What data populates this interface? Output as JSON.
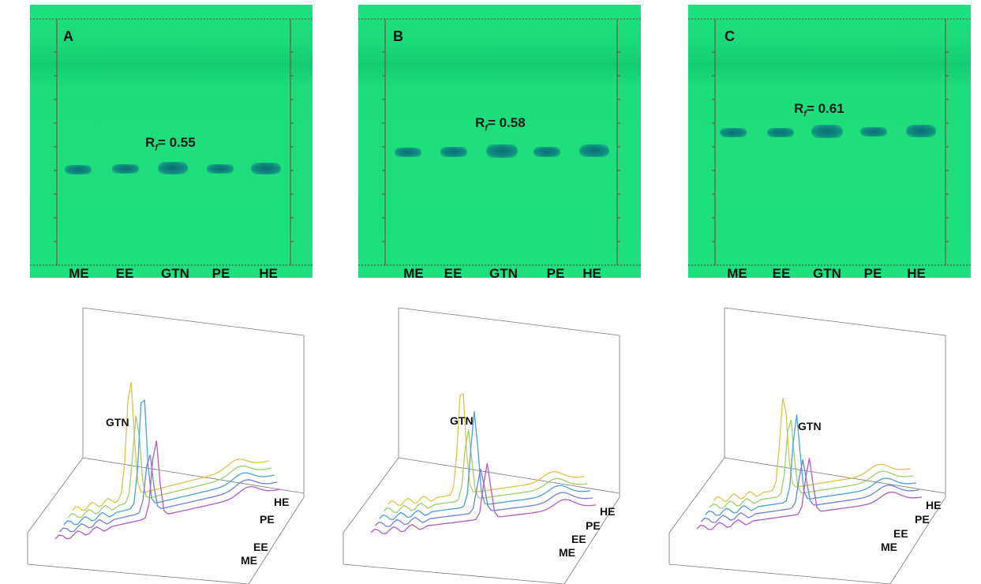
{
  "figure": {
    "panels": [
      {
        "letter": "A",
        "rf_value": "0.55",
        "rf_prefix": "R",
        "rf_sub": "f",
        "rf_text": "= 0.55"
      },
      {
        "letter": "B",
        "rf_value": "0.58",
        "rf_prefix": "R",
        "rf_sub": "f",
        "rf_text": "= 0.58"
      },
      {
        "letter": "C",
        "rf_value": "0.61",
        "rf_prefix": "R",
        "rf_sub": "f",
        "rf_text": "= 0.61"
      }
    ],
    "lanes": [
      "ME",
      "EE",
      "GTN",
      "PE",
      "HE"
    ],
    "peak_label": "GTN",
    "trace_labels": [
      "HE",
      "PE",
      "EE",
      "ME"
    ],
    "colors": {
      "plate": "#1fe07f",
      "spot": "#0a6f73",
      "traces": {
        "HE": "#d8c64a",
        "PE": "#9bd06a",
        "GTN": "#4aa0d8",
        "EE": "#6f7fe0",
        "ME": "#b45ac0"
      }
    }
  },
  "chart_data": [
    {
      "type": "bar",
      "panel": "A",
      "categories": [
        "ME",
        "EE",
        "GTN",
        "PE",
        "HE"
      ],
      "rf": [
        0.55,
        0.55,
        0.55,
        0.55,
        0.55
      ]
    },
    {
      "type": "bar",
      "panel": "B",
      "categories": [
        "ME",
        "EE",
        "GTN",
        "PE",
        "HE"
      ],
      "rf": [
        0.58,
        0.58,
        0.58,
        0.58,
        0.58
      ]
    },
    {
      "type": "bar",
      "panel": "C",
      "categories": [
        "ME",
        "EE",
        "GTN",
        "PE",
        "HE"
      ],
      "rf": [
        0.61,
        0.61,
        0.61,
        0.61,
        0.61
      ]
    }
  ]
}
